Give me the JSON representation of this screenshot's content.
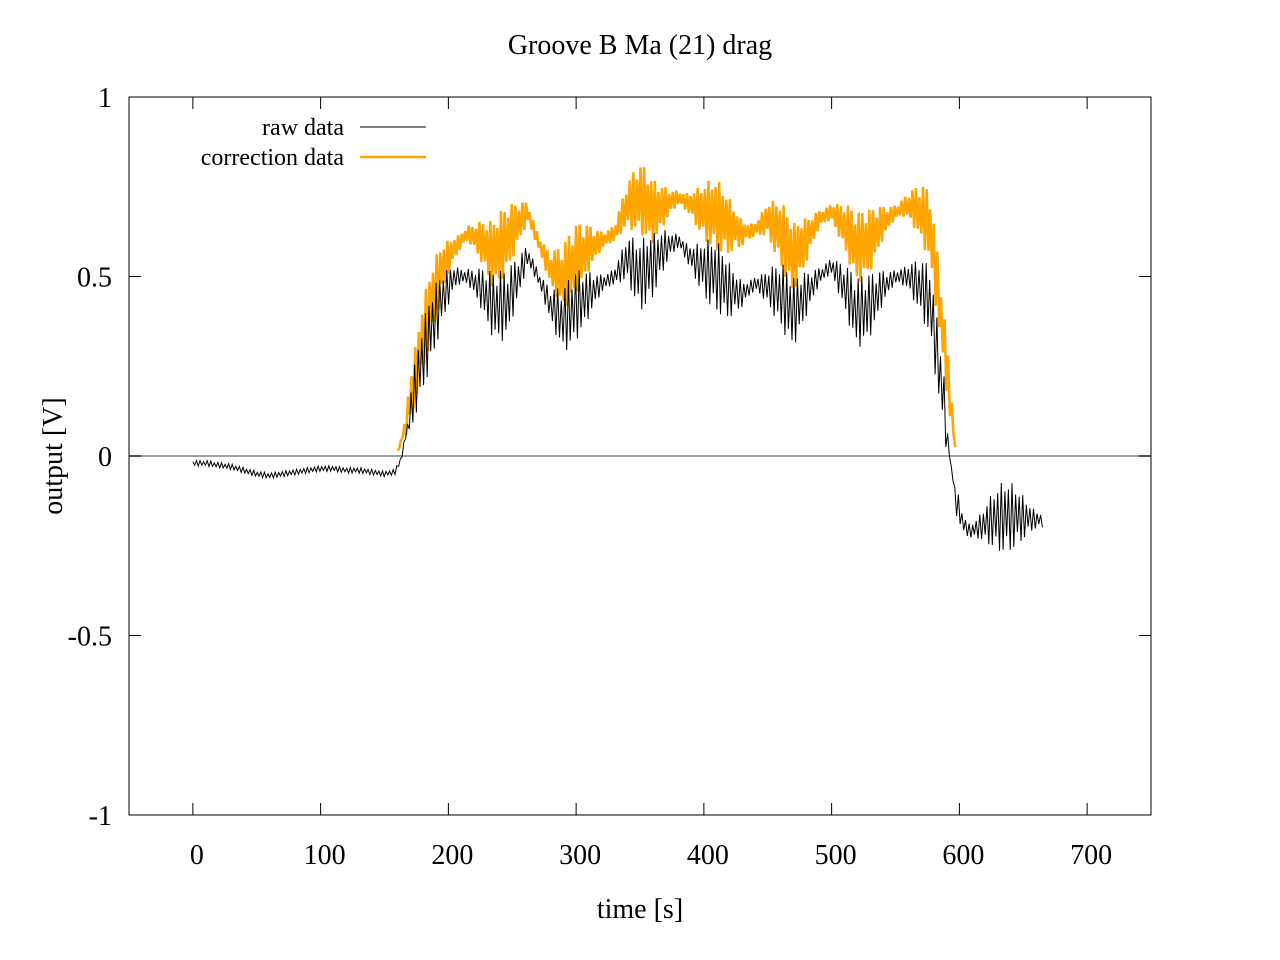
{
  "chart_data": {
    "type": "line",
    "title": "Groove B  Ma (21) drag",
    "xlabel": "time [s]",
    "ylabel": "output [V]",
    "xlim": [
      -50,
      750
    ],
    "ylim": [
      -1,
      1
    ],
    "x_ticks": [
      0,
      100,
      200,
      300,
      400,
      500,
      600,
      700
    ],
    "y_ticks": [
      -1,
      -0.5,
      0,
      0.5,
      1
    ],
    "x_tick_labels": [
      "0",
      "100",
      "200",
      "300",
      "400",
      "500",
      "600",
      "700"
    ],
    "y_tick_labels": [
      "-1",
      "-0.5",
      "0",
      "0.5",
      "1"
    ],
    "grid": false,
    "zero_line": true,
    "legend_position": "top-left",
    "colors": {
      "raw": "#000000",
      "correction": "#ffa500",
      "zero_line": "#a0a0a0"
    },
    "series": [
      {
        "name": "raw data",
        "color": "#000000",
        "x": [
          0,
          10,
          20,
          30,
          40,
          50,
          60,
          70,
          80,
          90,
          100,
          110,
          120,
          130,
          140,
          150,
          158,
          163,
          170,
          178,
          186,
          195,
          205,
          215,
          225,
          235,
          245,
          255,
          262,
          270,
          280,
          290,
          300,
          310,
          320,
          330,
          340,
          350,
          360,
          370,
          380,
          390,
          400,
          410,
          420,
          430,
          440,
          450,
          460,
          470,
          480,
          490,
          500,
          510,
          520,
          530,
          540,
          550,
          560,
          570,
          577,
          582,
          588,
          593,
          598,
          603,
          608,
          615,
          625,
          635,
          645,
          655,
          665
        ],
        "y": [
          -0.02,
          -0.02,
          -0.025,
          -0.03,
          -0.04,
          -0.05,
          -0.055,
          -0.05,
          -0.045,
          -0.04,
          -0.035,
          -0.035,
          -0.04,
          -0.04,
          -0.045,
          -0.05,
          -0.045,
          -0.01,
          0.12,
          0.25,
          0.35,
          0.44,
          0.5,
          0.5,
          0.47,
          0.42,
          0.42,
          0.5,
          0.56,
          0.5,
          0.42,
          0.38,
          0.42,
          0.45,
          0.48,
          0.5,
          0.55,
          0.5,
          0.53,
          0.58,
          0.6,
          0.55,
          0.52,
          0.5,
          0.46,
          0.45,
          0.48,
          0.47,
          0.45,
          0.4,
          0.45,
          0.5,
          0.53,
          0.47,
          0.4,
          0.42,
          0.47,
          0.5,
          0.5,
          0.47,
          0.43,
          0.3,
          0.15,
          -0.02,
          -0.13,
          -0.19,
          -0.21,
          -0.2,
          -0.18,
          -0.17,
          -0.17,
          -0.175,
          -0.18
        ]
      },
      {
        "name": "correction data",
        "color": "#ffa500",
        "x": [
          160,
          163,
          170,
          178,
          186,
          195,
          205,
          215,
          225,
          235,
          245,
          255,
          262,
          270,
          280,
          290,
          300,
          310,
          320,
          330,
          340,
          350,
          360,
          370,
          380,
          390,
          400,
          410,
          420,
          430,
          440,
          450,
          460,
          470,
          480,
          490,
          500,
          510,
          520,
          530,
          540,
          550,
          560,
          570,
          577,
          582,
          588,
          593,
          597
        ],
        "y": [
          0.01,
          0.04,
          0.15,
          0.3,
          0.42,
          0.52,
          0.58,
          0.62,
          0.6,
          0.56,
          0.6,
          0.65,
          0.68,
          0.6,
          0.52,
          0.5,
          0.55,
          0.58,
          0.6,
          0.62,
          0.7,
          0.72,
          0.68,
          0.7,
          0.72,
          0.7,
          0.68,
          0.67,
          0.64,
          0.62,
          0.63,
          0.66,
          0.62,
          0.55,
          0.6,
          0.66,
          0.68,
          0.64,
          0.58,
          0.6,
          0.65,
          0.68,
          0.7,
          0.68,
          0.64,
          0.5,
          0.32,
          0.15,
          0.01
        ]
      }
    ]
  }
}
